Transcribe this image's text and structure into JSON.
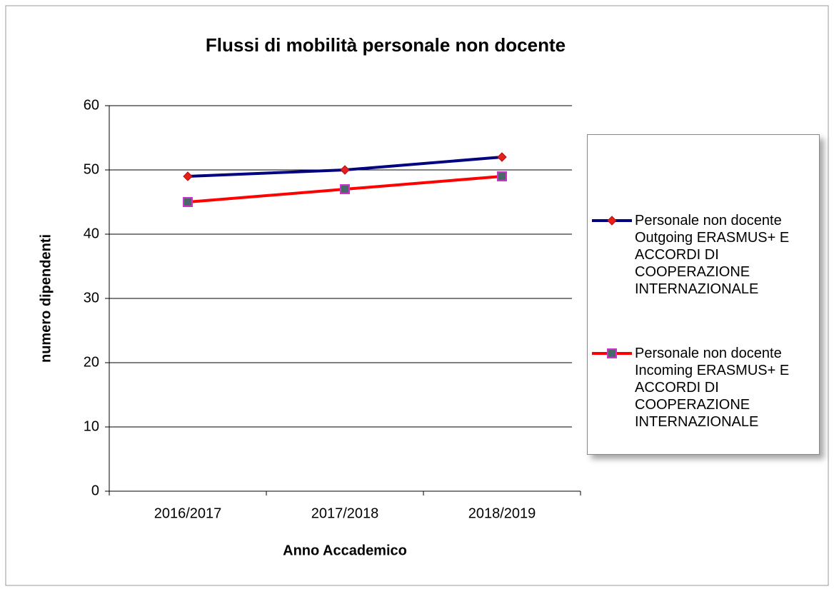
{
  "chart_data": {
    "type": "line",
    "title": "Flussi di mobilità personale non docente",
    "x_label": "Anno Accademico",
    "y_label": "numero dipendenti",
    "categories": [
      "2016/2017",
      "2017/2018",
      "2018/2019"
    ],
    "series": [
      {
        "name": "Personale non docente Outgoing ERASMUS+ E ACCORDI DI COOPERAZIONE INTERNAZIONALE",
        "color": "#000080",
        "marker": "diamond",
        "marker_color": "#e8201c",
        "marker_edge_color": "#b01010",
        "values": [
          49,
          50,
          52
        ]
      },
      {
        "name": "Personale non docente Incoming ERASMUS+ E ACCORDI DI COOPERAZIONE INTERNAZIONALE",
        "color": "#ff0000",
        "marker": "square",
        "marker_color": "#4a6868",
        "marker_edge_color": "#cc33cc",
        "values": [
          45,
          47,
          49
        ]
      }
    ],
    "ylim": [
      0,
      60
    ],
    "yticks": [
      0,
      10,
      20,
      30,
      40,
      50,
      60
    ],
    "grid": true,
    "legend": "right"
  }
}
